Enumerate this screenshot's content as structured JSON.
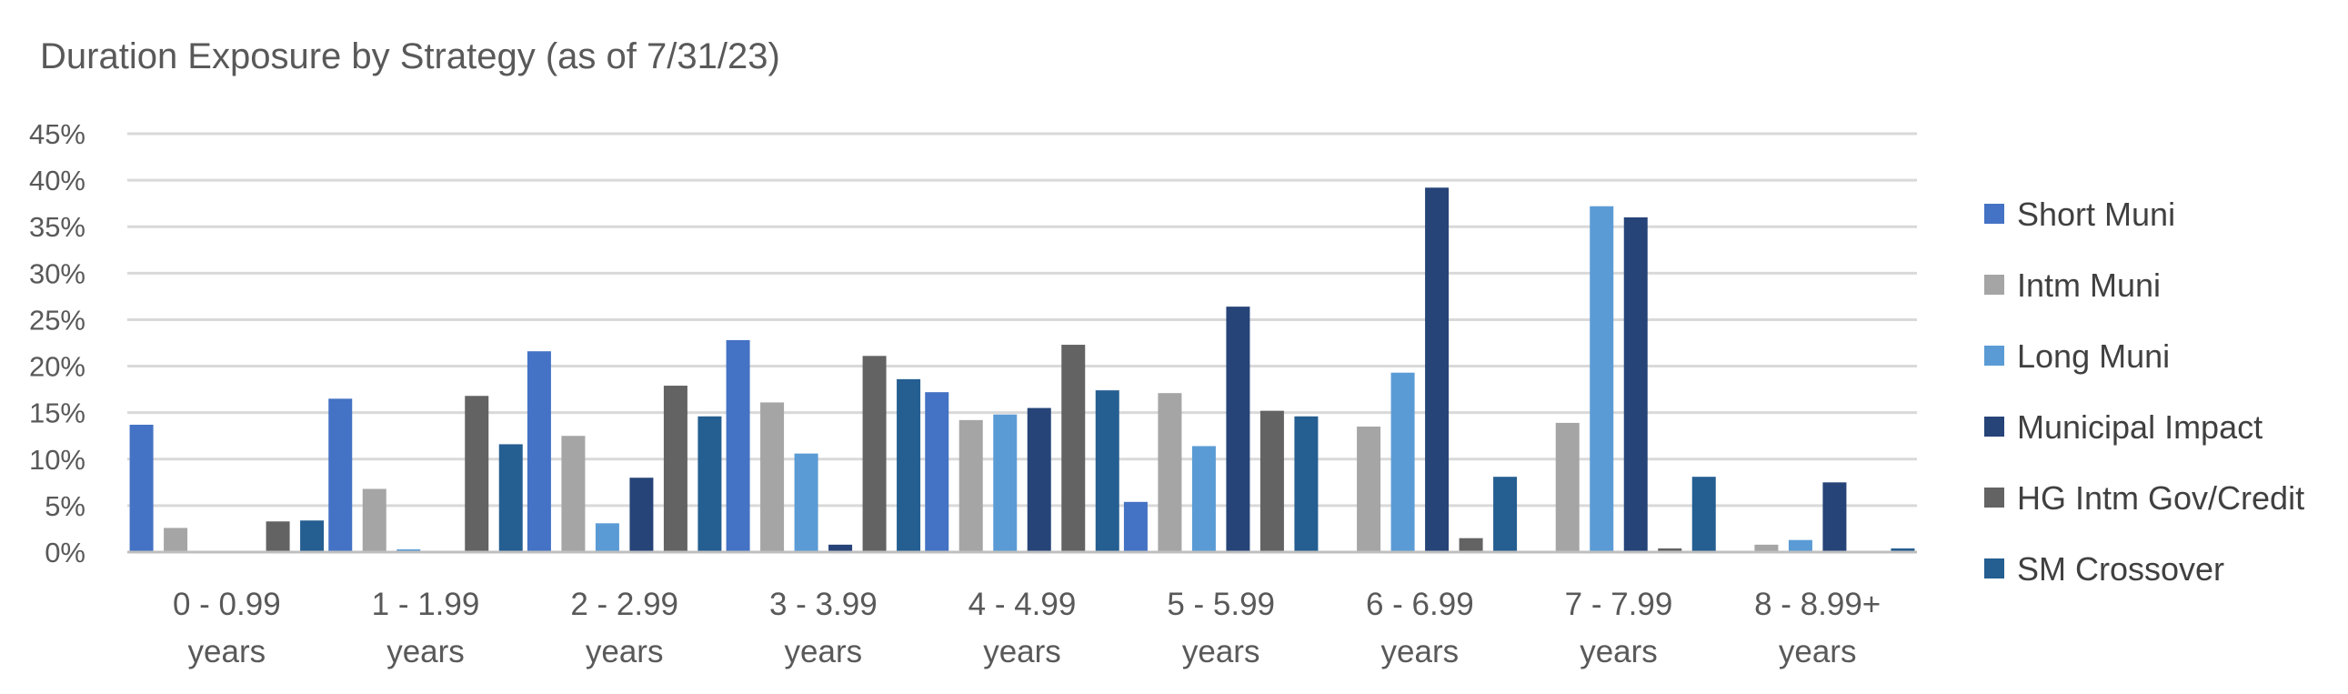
{
  "chart_data": {
    "type": "bar",
    "title": "Duration Exposure by Strategy (as of 7/31/23)",
    "xlabel": "",
    "ylabel": "",
    "ylim": [
      0,
      45
    ],
    "y_ticks": [
      "0%",
      "5%",
      "10%",
      "15%",
      "20%",
      "25%",
      "30%",
      "35%",
      "40%",
      "45%"
    ],
    "y_tick_values": [
      0,
      5,
      10,
      15,
      20,
      25,
      30,
      35,
      40,
      45
    ],
    "grid": true,
    "legend_position": "right",
    "categories": [
      [
        "0 - 0.99",
        "years"
      ],
      [
        "1 - 1.99",
        "years"
      ],
      [
        "2 - 2.99",
        "years"
      ],
      [
        "3 - 3.99",
        "years"
      ],
      [
        "4 - 4.99",
        "years"
      ],
      [
        "5 - 5.99",
        "years"
      ],
      [
        "6 - 6.99",
        "years"
      ],
      [
        "7 - 7.99",
        "years"
      ],
      [
        "8 - 8.99+",
        "years"
      ]
    ],
    "series": [
      {
        "name": "Short Muni",
        "color": "#4472c4",
        "values": [
          13.7,
          16.5,
          21.6,
          22.8,
          17.2,
          5.4,
          0,
          0,
          0
        ]
      },
      {
        "name": "Intm Muni",
        "color": "#a5a5a5",
        "values": [
          2.6,
          6.8,
          12.5,
          16.1,
          14.2,
          17.1,
          13.5,
          13.9,
          0.8
        ]
      },
      {
        "name": "Long Muni",
        "color": "#5b9bd5",
        "values": [
          0,
          0.3,
          3.1,
          10.6,
          14.8,
          11.4,
          19.3,
          37.2,
          1.3
        ]
      },
      {
        "name": "Municipal Impact",
        "color": "#264478",
        "values": [
          0,
          0,
          8.0,
          0.8,
          15.5,
          26.4,
          39.2,
          36.0,
          7.5
        ]
      },
      {
        "name": "HG Intm Gov/Credit",
        "color": "#636363",
        "values": [
          3.3,
          16.8,
          17.9,
          21.1,
          22.3,
          15.2,
          1.5,
          0.4,
          0
        ]
      },
      {
        "name": "SM Crossover",
        "color": "#255e91",
        "values": [
          3.4,
          11.6,
          14.6,
          18.6,
          17.4,
          14.6,
          8.1,
          8.1,
          0.4
        ]
      }
    ]
  }
}
